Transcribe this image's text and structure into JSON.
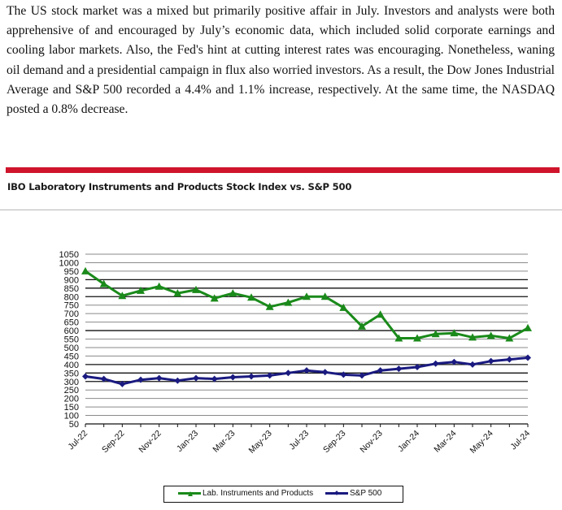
{
  "article": {
    "paragraph": "The US stock market was a mixed but primarily positive affair in July. Investors and analysts were both apprehensive of and encouraged by July’s economic data, which included solid corporate earnings and cooling labor markets. Also, the Fed's hint at cutting interest rates was encouraging. Nonetheless, waning oil demand and a presidential campaign in flux also worried investors. As a result, the Dow Jones Industrial Average and S&P 500 recorded a 4.4% and 1.1% increase, respectively. At the same time, the NASDAQ posted a 0.8% decrease."
  },
  "colors": {
    "red_bar": "#cf142b",
    "lab_series": "#1a8a1a",
    "sp_series": "#1a1a80"
  },
  "chart_data": {
    "type": "line",
    "title": "IBO Laboratory Instruments and Products Stock Index vs. S&P 500",
    "xlabel": "",
    "ylabel": "",
    "ylim": [
      50,
      1050
    ],
    "yticks": [
      50,
      100,
      150,
      200,
      250,
      300,
      350,
      400,
      450,
      500,
      550,
      600,
      650,
      700,
      750,
      800,
      850,
      900,
      950,
      1000,
      1050
    ],
    "dark_gridlines": [
      300,
      350,
      400,
      600,
      800,
      850,
      900
    ],
    "grid": true,
    "legend_position": "bottom",
    "x": [
      "Jul-22",
      "Aug-22",
      "Sep-22",
      "Oct-22",
      "Nov-22",
      "Dec-22",
      "Jan-23",
      "Feb-23",
      "Mar-23",
      "Apr-23",
      "May-23",
      "Jun-23",
      "Jul-23",
      "Aug-23",
      "Sep-23",
      "Oct-23",
      "Nov-23",
      "Dec-23",
      "Jan-24",
      "Feb-24",
      "Mar-24",
      "Apr-24",
      "May-24",
      "Jun-24",
      "Jul-24"
    ],
    "xtick_labels": [
      "Jul-22",
      "Sep-22",
      "Nov-22",
      "Jan-23",
      "Mar-23",
      "May-23",
      "Jul-23",
      "Sep-23",
      "Nov-23",
      "Jan-24",
      "Mar-24",
      "May-24",
      "Jul-24"
    ],
    "series": [
      {
        "name": "Lab. Instruments and Products",
        "marker": "triangle",
        "values": [
          950,
          875,
          805,
          835,
          860,
          820,
          840,
          790,
          820,
          795,
          740,
          765,
          800,
          800,
          735,
          625,
          695,
          555,
          555,
          580,
          585,
          560,
          570,
          555,
          615
        ]
      },
      {
        "name": "S&P 500",
        "marker": "diamond",
        "values": [
          330,
          315,
          285,
          310,
          320,
          305,
          320,
          315,
          325,
          330,
          335,
          350,
          365,
          355,
          340,
          335,
          365,
          375,
          385,
          405,
          415,
          400,
          420,
          430,
          440
        ]
      }
    ]
  }
}
